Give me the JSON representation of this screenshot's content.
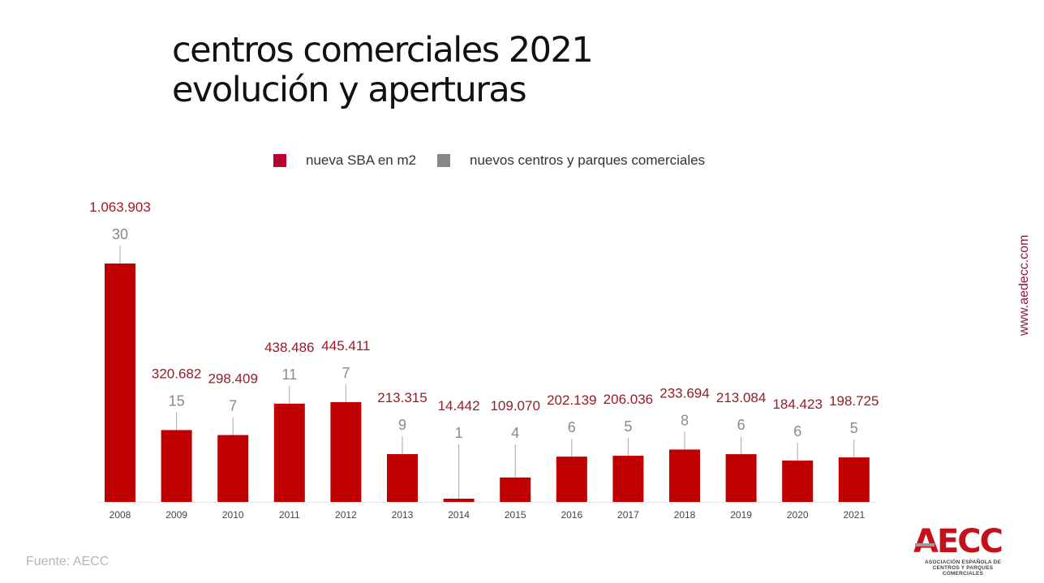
{
  "title_line1": "centros comerciales 2021",
  "title_line2": "evolución y aperturas",
  "legend": [
    {
      "label": "nueva SBA en m2",
      "color": "#b5052e"
    },
    {
      "label": "nuevos centros y parques comerciales",
      "color": "#888888"
    }
  ],
  "source": "Fuente: AECC",
  "website": "www.aedecc.com",
  "logo": {
    "text": "AECC",
    "subtitle": "Asociación Española de Centros y Parques Comerciales"
  },
  "colors": {
    "bar": "#c00000",
    "sba_label": "#9b1b24",
    "count_label": "#8a8a8a",
    "axis_label": "#444444"
  },
  "chart_data": {
    "type": "bar",
    "categories": [
      "2008",
      "2009",
      "2010",
      "2011",
      "2012",
      "2013",
      "2014",
      "2015",
      "2016",
      "2017",
      "2018",
      "2019",
      "2020",
      "2021"
    ],
    "series": [
      {
        "name": "nueva SBA en m2",
        "values": [
          1063903,
          320682,
          298409,
          438486,
          445411,
          213315,
          14442,
          109070,
          202139,
          206036,
          233694,
          213084,
          184423,
          198725
        ]
      },
      {
        "name": "nuevos centros y parques comerciales",
        "values": [
          30,
          15,
          7,
          11,
          7,
          9,
          1,
          4,
          6,
          5,
          8,
          6,
          6,
          5
        ]
      }
    ],
    "sba_labels": [
      "1.063.903",
      "320.682",
      "298.409",
      "438.486",
      "445.411",
      "213.315",
      "14.442",
      "109.070",
      "202.139",
      "206.036",
      "233.694",
      "213.084",
      "184.423",
      "198.725"
    ],
    "count_labels": [
      "30",
      "15",
      "7",
      "11",
      "7",
      "9",
      "1",
      "4",
      "6",
      "5",
      "8",
      "6",
      "6",
      "5"
    ]
  }
}
